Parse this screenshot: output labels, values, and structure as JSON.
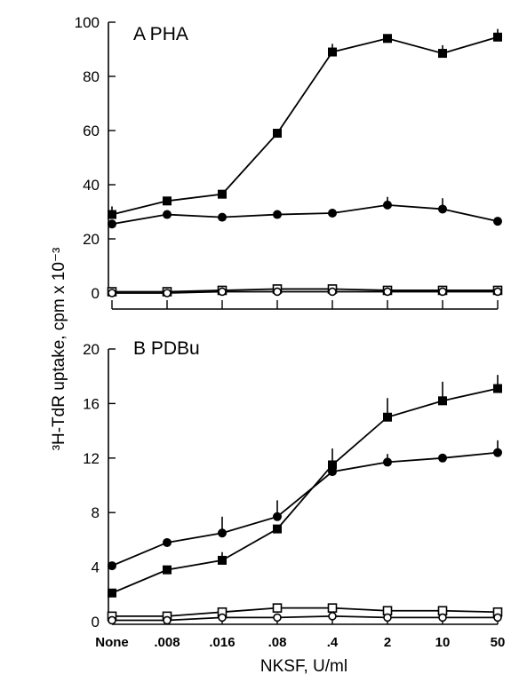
{
  "chart_data": {
    "type": "line",
    "ylabel": "³H-TdR uptake, cpm x 10⁻³",
    "xlabel": "NKSF, U/ml",
    "categories": [
      "None",
      ".008",
      ".016",
      ".08",
      ".4",
      "2",
      "10",
      "50"
    ],
    "panels": [
      {
        "title": "A  PHA",
        "ylim": [
          0,
          100
        ],
        "yticks": [
          "0",
          "20",
          "40",
          "60",
          "80",
          "100"
        ],
        "series": [
          {
            "marker": "filled-square",
            "values": [
              29,
              34,
              36.5,
              59,
              89,
              94,
              88.5,
              94.5
            ],
            "errors": [
              3,
              0,
              0,
              0,
              3,
              0,
              3,
              3
            ]
          },
          {
            "marker": "filled-circle",
            "values": [
              25.5,
              29,
              28,
              29,
              29.5,
              32.5,
              31,
              26.5
            ],
            "errors": [
              0,
              0,
              0,
              0,
              0,
              3,
              4,
              0
            ]
          },
          {
            "marker": "open-square",
            "values": [
              0.5,
              0.5,
              1,
              1.5,
              1.5,
              1,
              1,
              1
            ],
            "errors": [
              0,
              0,
              0,
              0,
              0,
              0,
              0,
              0
            ]
          },
          {
            "marker": "open-circle",
            "values": [
              0,
              0,
              0.5,
              0.5,
              0.5,
              0.5,
              0.5,
              0.5
            ],
            "errors": [
              0,
              0,
              0,
              0,
              0,
              0,
              0,
              0
            ]
          }
        ]
      },
      {
        "title": "B  PDBu",
        "ylim": [
          0,
          20
        ],
        "yticks": [
          "0",
          "4",
          "8",
          "12",
          "16",
          "20"
        ],
        "series": [
          {
            "marker": "filled-square",
            "values": [
              2.1,
              3.8,
              4.5,
              6.8,
              11.5,
              15.0,
              16.2,
              17.1
            ],
            "errors": [
              0,
              0,
              0.6,
              0,
              1.2,
              1.4,
              1.4,
              1.0
            ]
          },
          {
            "marker": "filled-circle",
            "values": [
              4.1,
              5.8,
              6.5,
              7.7,
              11.0,
              11.7,
              12.0,
              12.4
            ],
            "errors": [
              0,
              0,
              1.2,
              1.2,
              0,
              0.6,
              0,
              0.9
            ]
          },
          {
            "marker": "open-square",
            "values": [
              0.4,
              0.4,
              0.7,
              1.0,
              1.0,
              0.8,
              0.8,
              0.7
            ],
            "errors": [
              0,
              0,
              0,
              0,
              0,
              0,
              0,
              0
            ]
          },
          {
            "marker": "open-circle",
            "values": [
              0.1,
              0.1,
              0.3,
              0.3,
              0.4,
              0.3,
              0.3,
              0.3
            ],
            "errors": [
              0,
              0,
              0,
              0,
              0,
              0,
              0,
              0
            ]
          }
        ]
      }
    ]
  }
}
